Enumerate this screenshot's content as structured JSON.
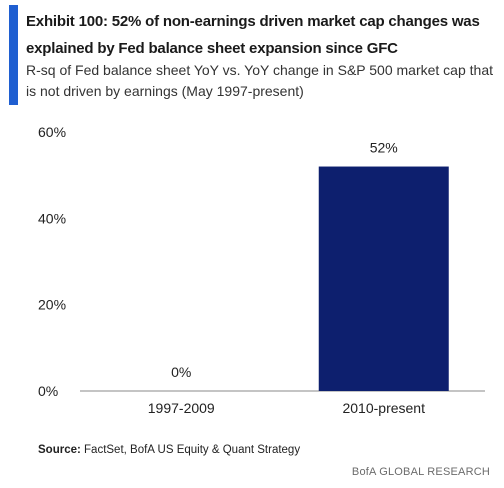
{
  "header": {
    "title": "Exhibit 100: 52% of non-earnings driven market cap changes was explained by Fed balance sheet expansion since GFC",
    "subtitle": "R-sq of Fed balance sheet YoY vs. YoY change in S&P 500 market cap that is not driven by earnings (May 1997-present)"
  },
  "footer": {
    "source_label": "Source:",
    "source_text": " FactSet, BofA US Equity & Quant Strategy",
    "brand": "BofA GLOBAL RESEARCH"
  },
  "colors": {
    "accent": "#1f5fd1",
    "bar": "#0d1f6e"
  },
  "chart_data": {
    "type": "bar",
    "categories": [
      "1997-2009",
      "2010-present"
    ],
    "values": [
      0,
      52
    ],
    "data_labels": [
      "0%",
      "52%"
    ],
    "ylim": [
      0,
      60
    ],
    "yticks": [
      0,
      20,
      40,
      60
    ],
    "ytick_labels": [
      "0%",
      "20%",
      "40%",
      "60%"
    ],
    "grid": false,
    "legend": "none"
  }
}
